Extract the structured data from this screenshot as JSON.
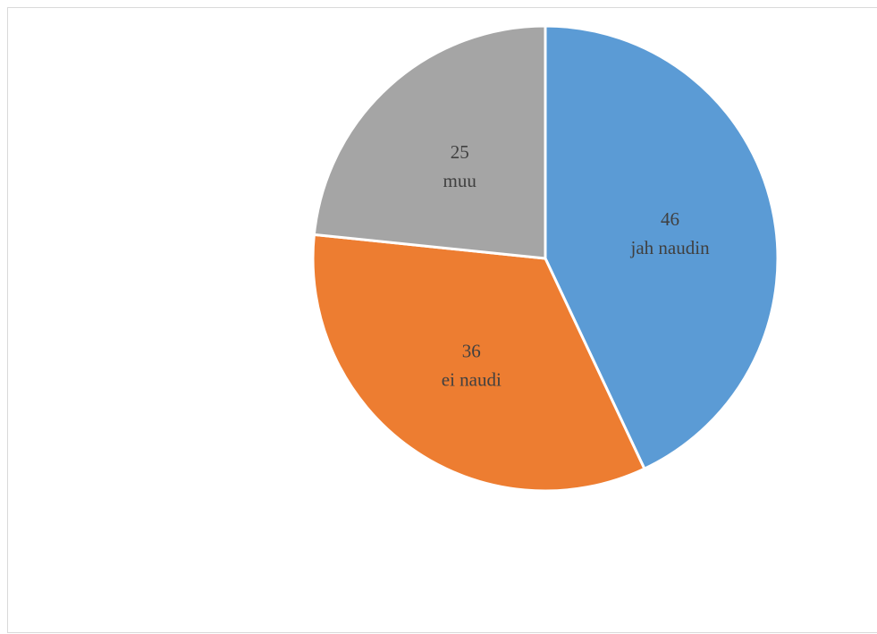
{
  "chart_data": {
    "type": "pie",
    "title": "",
    "start_angle_deg": 0,
    "direction": "clockwise",
    "slices": [
      {
        "label": "jah naudin",
        "value": 46,
        "color": "#5b9bd5"
      },
      {
        "label": "ei naudi",
        "value": 36,
        "color": "#ed7d31"
      },
      {
        "label": "muu",
        "value": 25,
        "color": "#a5a5a5"
      }
    ],
    "data_labels": "value and category inside slices",
    "slice_border_color": "#ffffff",
    "legend": "none"
  }
}
